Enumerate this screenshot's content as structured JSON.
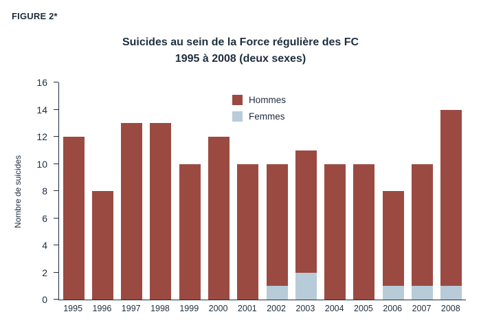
{
  "figure_label": "FIGURE 2*",
  "title_line1": "Suicides au sein de la Force régulière des FC",
  "title_line2": "1995 à 2008 (deux sexes)",
  "ylabel": "Nombre de suicides",
  "colors": {
    "hommes": "#9b4a42",
    "femmes": "#b8cbd8",
    "axis": "#1e2d3d",
    "text": "#1e2d3d"
  },
  "chart_data": {
    "type": "bar",
    "stacked": true,
    "title": "Suicides au sein de la Force régulière des FC 1995 à 2008 (deux sexes)",
    "xlabel": "",
    "ylabel": "Nombre de suicides",
    "categories": [
      "1995",
      "1996",
      "1997",
      "1998",
      "1999",
      "2000",
      "2001",
      "2002",
      "2003",
      "2004",
      "2005",
      "2006",
      "2007",
      "2008"
    ],
    "series": [
      {
        "name": "Hommes",
        "color": "#9b4a42",
        "values": [
          12,
          8,
          13,
          13,
          10,
          12,
          10,
          9,
          9,
          10,
          10,
          7,
          9,
          13
        ]
      },
      {
        "name": "Femmes",
        "color": "#b8cbd8",
        "values": [
          0,
          0,
          0,
          0,
          0,
          0,
          0,
          1,
          2,
          0,
          0,
          1,
          1,
          1
        ]
      }
    ],
    "totals": [
      12,
      8,
      13,
      13,
      10,
      12,
      10,
      10,
      11,
      10,
      10,
      8,
      10,
      14
    ],
    "ylim": [
      0,
      16
    ],
    "yticks": [
      0,
      2,
      4,
      6,
      8,
      10,
      12,
      14,
      16
    ],
    "grid": false,
    "legend_position": "upper-center-inside"
  }
}
